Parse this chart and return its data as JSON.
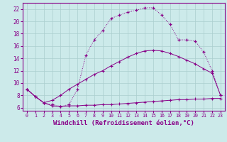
{
  "background_color": "#cceaea",
  "grid_color": "#aacece",
  "line_color": "#880088",
  "xlabel": "Windchill (Refroidissement éolien,°C)",
  "xlabel_fontsize": 6.5,
  "yticks": [
    6,
    8,
    10,
    12,
    14,
    16,
    18,
    20,
    22
  ],
  "xticks": [
    0,
    1,
    2,
    3,
    4,
    5,
    6,
    7,
    8,
    9,
    10,
    11,
    12,
    13,
    14,
    15,
    16,
    17,
    18,
    19,
    20,
    21,
    22,
    23
  ],
  "xlim": [
    -0.5,
    23.5
  ],
  "ylim": [
    5.5,
    23.0
  ],
  "curve_bottom_x": [
    0,
    1,
    2,
    3,
    4,
    5,
    6,
    7,
    8,
    9,
    10,
    11,
    12,
    13,
    14,
    15,
    16,
    17,
    18,
    19,
    20,
    21,
    22,
    23
  ],
  "curve_bottom_y": [
    9.0,
    7.8,
    6.8,
    6.3,
    6.2,
    6.3,
    6.3,
    6.4,
    6.4,
    6.5,
    6.5,
    6.6,
    6.7,
    6.8,
    6.9,
    7.0,
    7.1,
    7.2,
    7.3,
    7.3,
    7.4,
    7.4,
    7.5,
    7.5
  ],
  "curve_mid_x": [
    0,
    1,
    2,
    3,
    4,
    5,
    6,
    7,
    8,
    9,
    10,
    11,
    12,
    13,
    14,
    15,
    16,
    17,
    18,
    19,
    20,
    21,
    22,
    23
  ],
  "curve_mid_y": [
    9.0,
    7.8,
    6.8,
    7.2,
    8.0,
    9.0,
    9.8,
    10.6,
    11.4,
    12.0,
    12.8,
    13.5,
    14.2,
    14.8,
    15.2,
    15.3,
    15.2,
    14.8,
    14.3,
    13.7,
    13.1,
    12.3,
    11.6,
    8.0
  ],
  "curve_top_x": [
    0,
    1,
    2,
    3,
    4,
    5,
    6,
    7,
    8,
    9,
    10,
    11,
    12,
    13,
    14,
    15,
    16,
    17,
    18,
    19,
    20,
    21,
    22,
    23
  ],
  "curve_top_y": [
    9.0,
    7.8,
    6.8,
    6.5,
    6.2,
    6.5,
    9.0,
    14.5,
    17.0,
    18.5,
    20.5,
    21.0,
    21.5,
    21.8,
    22.2,
    22.2,
    21.0,
    19.5,
    17.0,
    17.0,
    16.8,
    15.0,
    12.0,
    8.0
  ]
}
